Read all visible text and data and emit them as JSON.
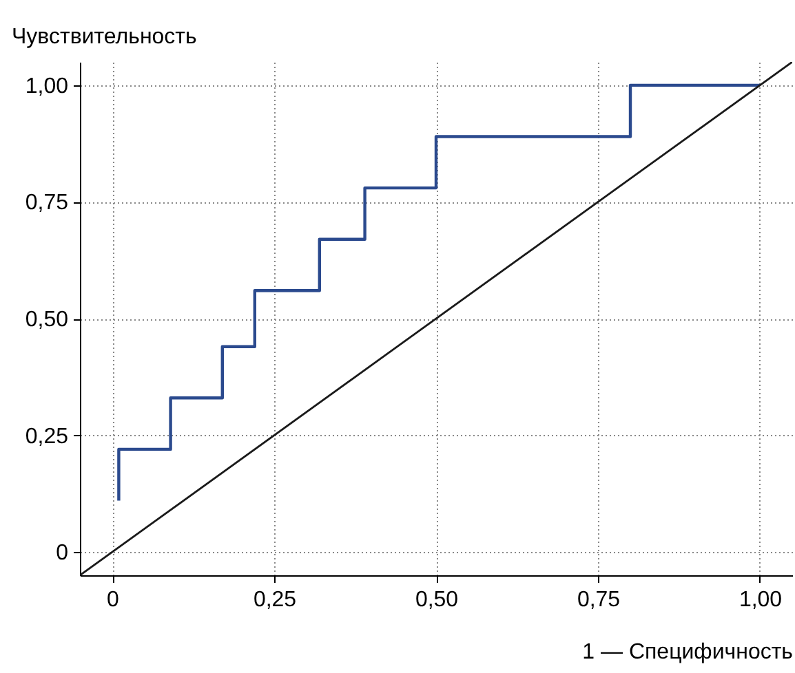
{
  "chart_data": {
    "type": "line",
    "xlabel": "1 — Специфичность",
    "ylabel": "Чувствительность",
    "xlim": [
      -0.05,
      1.05
    ],
    "ylim": [
      -0.05,
      1.05
    ],
    "xticks": [
      0,
      {
        "value": 0.25,
        "label": "0,25"
      },
      {
        "value": 0.5,
        "label": "0,50"
      },
      {
        "value": 0.75,
        "label": "0,75"
      },
      {
        "value": 1,
        "label": "1,00"
      }
    ],
    "yticks": [
      0,
      {
        "value": 0.25,
        "label": "0,25"
      },
      {
        "value": 0.5,
        "label": "0,50"
      },
      {
        "value": 0.75,
        "label": "0,75"
      },
      {
        "value": 1,
        "label": "1,00"
      }
    ],
    "grid": true,
    "line_style": "solid",
    "series": [
      {
        "type": "step",
        "color": "#2b4a8e",
        "x": [
          0.01,
          0.01,
          0.09,
          0.17,
          0.22,
          0.32,
          0.39,
          0.5,
          0.8,
          1.0
        ],
        "values": [
          0.11,
          0.22,
          0.33,
          0.44,
          0.56,
          0.67,
          0.78,
          0.89,
          1.0,
          1.0
        ]
      },
      {
        "type": "line",
        "color": "#1a1a1a",
        "x": [
          -0.05,
          1.05
        ],
        "values": [
          -0.05,
          1.05
        ]
      }
    ]
  }
}
